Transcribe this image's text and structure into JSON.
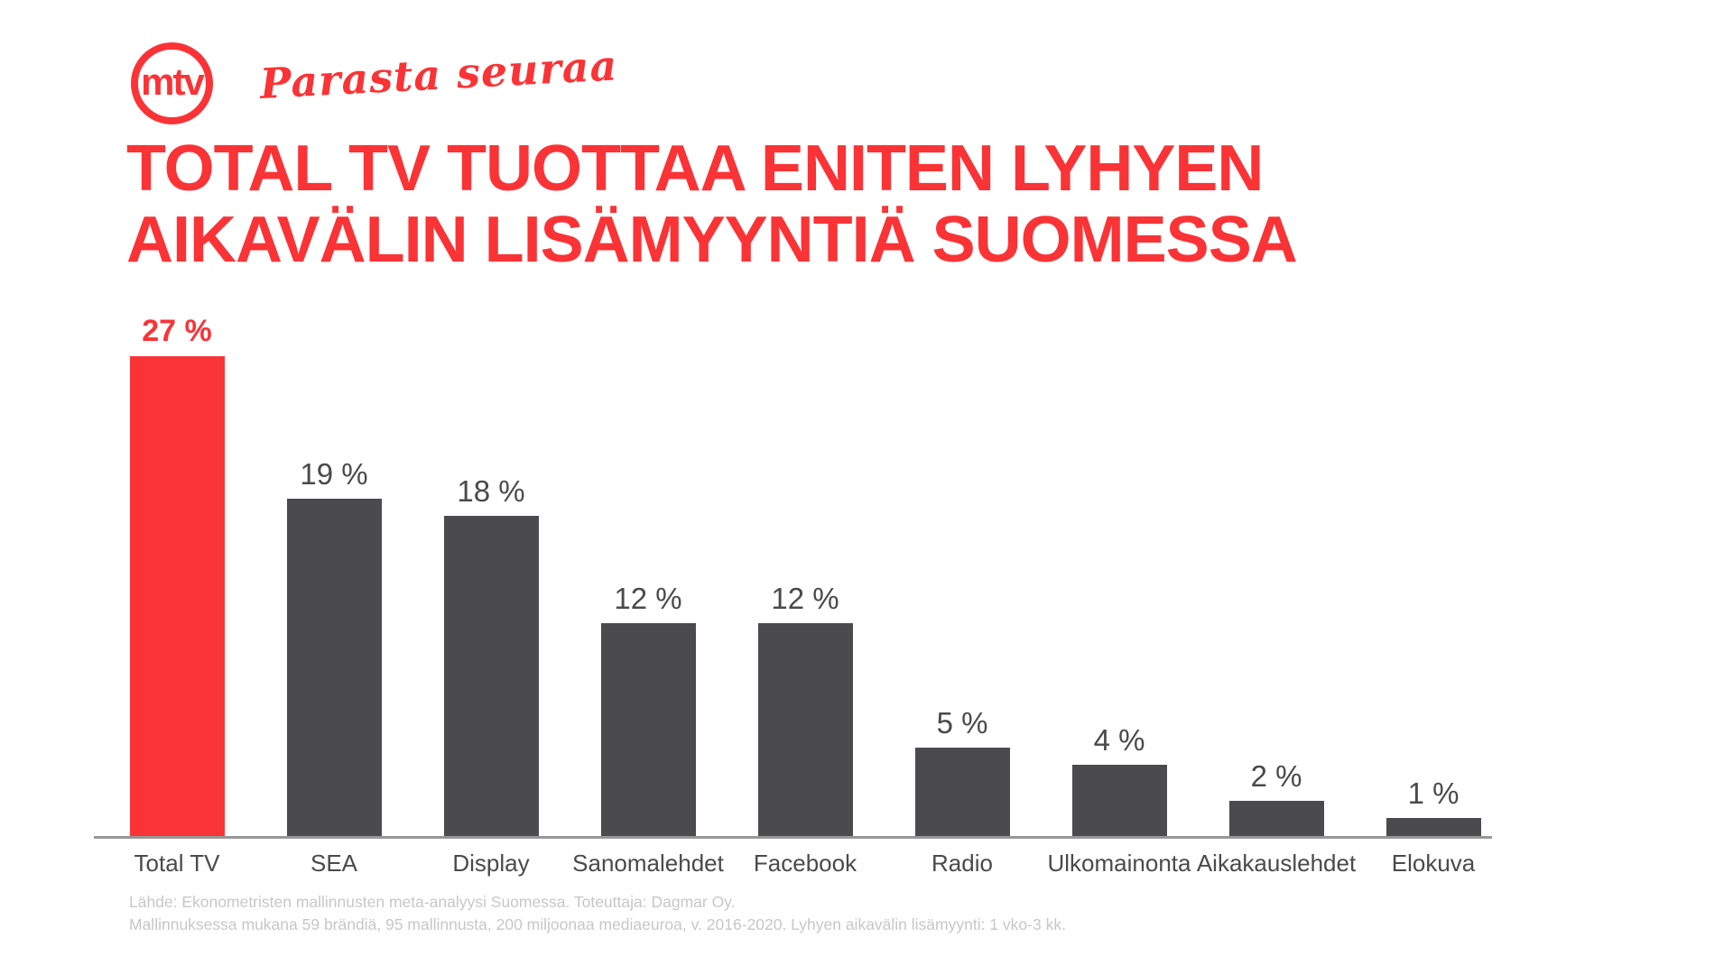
{
  "brand": {
    "logo_text": "mtv",
    "tagline": "Parasta seuraa",
    "color_red": "#fa3336"
  },
  "title": {
    "line1": "TOTAL TV TUOTTAA ENITEN LYHYEN",
    "line2": "AIKAVÄLIN LISÄMYYNTIÄ SUOMESSA"
  },
  "chart_data": {
    "type": "bar",
    "title": "",
    "xlabel": "",
    "ylabel": "",
    "categories": [
      "Total TV",
      "SEA",
      "Display",
      "Sanomalehdet",
      "Facebook",
      "Radio",
      "Ulkomainonta",
      "Aikakauslehdet",
      "Elokuva"
    ],
    "values": [
      27,
      19,
      18,
      12,
      12,
      5,
      4,
      2,
      1
    ],
    "value_labels": [
      "27 %",
      "19 %",
      "18 %",
      "12 %",
      "12 %",
      "5 %",
      "4 %",
      "2 %",
      "1 %"
    ],
    "unit": "%",
    "ylim": [
      0,
      28
    ],
    "grid": false,
    "legend": null,
    "highlight_index": 0,
    "highlight_color": "#fa3336",
    "bar_color": "#4b4b4d",
    "baseline_axis_color": "#979797"
  },
  "footer": {
    "line1": "Lähde: Ekonometristen mallinnusten meta-analyysi Suomessa. Toteuttaja: Dagmar Oy.",
    "line2": "Mallinnuksessa mukana 59 brändiä, 95 mallinnusta, 200 miljoonaa mediaeuroa, v. 2016-2020. Lyhyen aikavälin lisämyynti: 1 vko-3 kk."
  }
}
